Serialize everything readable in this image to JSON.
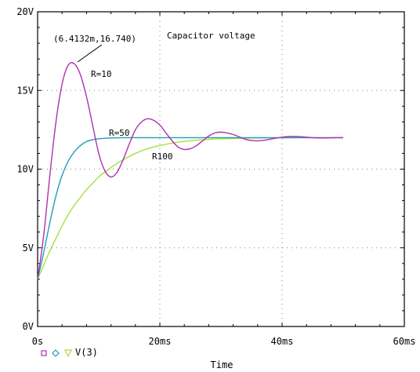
{
  "chart_data": {
    "type": "line",
    "xlabel": "Time",
    "x_ticks": [
      "0s",
      "20ms",
      "40ms",
      "60ms"
    ],
    "x_tick_values": [
      0,
      20,
      40,
      60
    ],
    "xlim": [
      0,
      60
    ],
    "y_ticks": [
      "0V",
      "5V",
      "10V",
      "15V",
      "20V"
    ],
    "y_tick_values": [
      0,
      5,
      10,
      15,
      20
    ],
    "ylim": [
      0,
      20
    ],
    "grid": "dotted",
    "annotations": {
      "title": "Capacitor voltage",
      "marker_label": "(6.4132m,16.740)",
      "marker_point": [
        6.4132,
        16.74
      ],
      "label_r10": "R=10",
      "label_r50": "R=50",
      "label_r100": "R100"
    },
    "legend": {
      "trace_label": "V(3)"
    },
    "series": [
      {
        "color": "#b030b0",
        "x": [
          0,
          1,
          2,
          3,
          4,
          5,
          6,
          7,
          8,
          9,
          10,
          11,
          12,
          13,
          14,
          15,
          16,
          17,
          18,
          19,
          20,
          21,
          22,
          23,
          24,
          25,
          26,
          27,
          28,
          29,
          30,
          31,
          32,
          33,
          34,
          35,
          36,
          37,
          38,
          39,
          40,
          41,
          42,
          43,
          44,
          45,
          46,
          47,
          48,
          49,
          50
        ],
        "y": [
          3.0,
          5.8,
          9.6,
          13.0,
          15.4,
          16.6,
          16.7,
          16.0,
          14.6,
          12.8,
          11.0,
          9.9,
          9.5,
          9.8,
          10.6,
          11.6,
          12.5,
          13.0,
          13.2,
          13.1,
          12.8,
          12.3,
          11.8,
          11.4,
          11.25,
          11.3,
          11.5,
          11.8,
          12.1,
          12.3,
          12.35,
          12.3,
          12.2,
          12.05,
          11.9,
          11.82,
          11.8,
          11.83,
          11.9,
          11.97,
          12.03,
          12.07,
          12.08,
          12.06,
          12.03,
          12.0,
          11.98,
          11.98,
          11.99,
          12.0,
          12.0
        ]
      },
      {
        "color": "#1ea0b4",
        "x": [
          0,
          1,
          2,
          3,
          4,
          5,
          6,
          7,
          8,
          9,
          10,
          11,
          12,
          13,
          14,
          15,
          16,
          18,
          20,
          25,
          30,
          35,
          40,
          45,
          50
        ],
        "y": [
          3.0,
          4.7,
          6.6,
          8.3,
          9.6,
          10.5,
          11.1,
          11.5,
          11.75,
          11.87,
          11.93,
          11.96,
          11.98,
          11.99,
          12.0,
          12.0,
          12.0,
          12.0,
          12.0,
          12.0,
          12.0,
          12.0,
          12.0,
          12.0,
          12.0
        ]
      },
      {
        "color": "#a8e040",
        "x": [
          0,
          1,
          2,
          3,
          4,
          5,
          6,
          7,
          8,
          9,
          10,
          12,
          14,
          16,
          18,
          20,
          22,
          24,
          26,
          28,
          30,
          32,
          34,
          36,
          38,
          40,
          42,
          45,
          50
        ],
        "y": [
          3.0,
          3.9,
          4.8,
          5.6,
          6.4,
          7.1,
          7.7,
          8.2,
          8.7,
          9.1,
          9.5,
          10.1,
          10.6,
          11.0,
          11.3,
          11.5,
          11.65,
          11.76,
          11.84,
          11.89,
          11.93,
          11.95,
          11.97,
          11.98,
          11.99,
          11.99,
          12.0,
          12.0,
          12.0
        ]
      }
    ]
  }
}
